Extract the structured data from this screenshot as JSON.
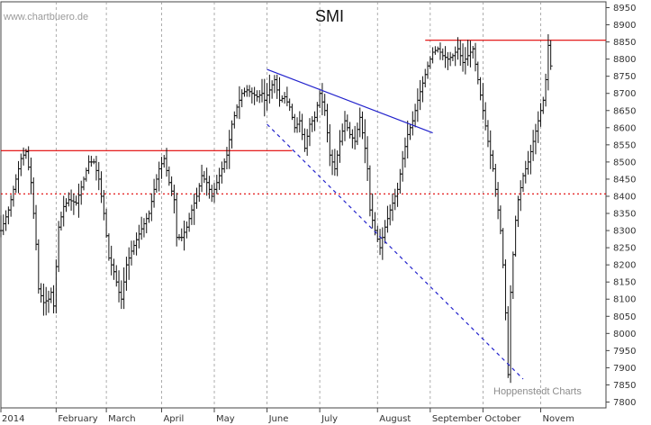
{
  "chart_data": {
    "type": "bar",
    "subtype": "ohlc",
    "title": "SMI",
    "source": "www.chartbuero.de",
    "credit": "Hoppenstedt Charts",
    "ylim": [
      7800,
      8950
    ],
    "y_ticks": [
      7800,
      7850,
      7900,
      7950,
      8000,
      8050,
      8100,
      8150,
      8200,
      8250,
      8300,
      8350,
      8400,
      8450,
      8500,
      8550,
      8600,
      8650,
      8700,
      8750,
      8800,
      8850,
      8900,
      8950
    ],
    "grid": {
      "vertical_month_lines": true,
      "style": "dashed-gray"
    },
    "months": [
      {
        "label": "2014",
        "day": 0
      },
      {
        "label": "February",
        "day": 22
      },
      {
        "label": "March",
        "day": 42
      },
      {
        "label": "April",
        "day": 64
      },
      {
        "label": "May",
        "day": 85
      },
      {
        "label": "June",
        "day": 106
      },
      {
        "label": "July",
        "day": 127
      },
      {
        "label": "August",
        "day": 150
      },
      {
        "label": "September",
        "day": 171
      },
      {
        "label": "October",
        "day": 192
      },
      {
        "label": "Novem",
        "day": 215
      }
    ],
    "x_range": [
      0,
      241
    ],
    "anchors": [
      [
        0,
        8300
      ],
      [
        3,
        8360
      ],
      [
        6,
        8450
      ],
      [
        8,
        8510
      ],
      [
        10,
        8530
      ],
      [
        12,
        8440
      ],
      [
        14,
        8260
      ],
      [
        15,
        8130
      ],
      [
        17,
        8090
      ],
      [
        19,
        8100
      ],
      [
        20,
        8120
      ],
      [
        21,
        8080
      ],
      [
        23,
        8310
      ],
      [
        25,
        8370
      ],
      [
        27,
        8390
      ],
      [
        30,
        8380
      ],
      [
        33,
        8450
      ],
      [
        35,
        8500
      ],
      [
        37,
        8500
      ],
      [
        39,
        8450
      ],
      [
        41,
        8350
      ],
      [
        43,
        8220
      ],
      [
        45,
        8180
      ],
      [
        47,
        8120
      ],
      [
        48,
        8100
      ],
      [
        50,
        8200
      ],
      [
        52,
        8240
      ],
      [
        55,
        8290
      ],
      [
        57,
        8320
      ],
      [
        59,
        8350
      ],
      [
        61,
        8420
      ],
      [
        63,
        8480
      ],
      [
        65,
        8510
      ],
      [
        67,
        8440
      ],
      [
        69,
        8390
      ],
      [
        70,
        8280
      ],
      [
        72,
        8280
      ],
      [
        74,
        8310
      ],
      [
        76,
        8360
      ],
      [
        78,
        8400
      ],
      [
        80,
        8460
      ],
      [
        82,
        8440
      ],
      [
        84,
        8400
      ],
      [
        86,
        8440
      ],
      [
        88,
        8480
      ],
      [
        90,
        8520
      ],
      [
        92,
        8610
      ],
      [
        94,
        8660
      ],
      [
        96,
        8700
      ],
      [
        98,
        8710
      ],
      [
        100,
        8700
      ],
      [
        102,
        8690
      ],
      [
        104,
        8700
      ],
      [
        105,
        8680
      ],
      [
        107,
        8710
      ],
      [
        109,
        8740
      ],
      [
        111,
        8680
      ],
      [
        113,
        8690
      ],
      [
        115,
        8660
      ],
      [
        117,
        8600
      ],
      [
        119,
        8620
      ],
      [
        121,
        8540
      ],
      [
        123,
        8610
      ],
      [
        125,
        8630
      ],
      [
        127,
        8700
      ],
      [
        129,
        8650
      ],
      [
        131,
        8520
      ],
      [
        133,
        8480
      ],
      [
        135,
        8560
      ],
      [
        137,
        8620
      ],
      [
        139,
        8580
      ],
      [
        141,
        8560
      ],
      [
        143,
        8630
      ],
      [
        145,
        8540
      ],
      [
        146,
        8480
      ],
      [
        147,
        8360
      ],
      [
        149,
        8300
      ],
      [
        151,
        8250
      ],
      [
        153,
        8310
      ],
      [
        155,
        8360
      ],
      [
        156,
        8380
      ],
      [
        158,
        8420
      ],
      [
        160,
        8510
      ],
      [
        162,
        8580
      ],
      [
        164,
        8620
      ],
      [
        166,
        8680
      ],
      [
        168,
        8730
      ],
      [
        170,
        8780
      ],
      [
        172,
        8820
      ],
      [
        174,
        8830
      ],
      [
        176,
        8810
      ],
      [
        178,
        8800
      ],
      [
        180,
        8810
      ],
      [
        182,
        8830
      ],
      [
        184,
        8790
      ],
      [
        186,
        8810
      ],
      [
        188,
        8830
      ],
      [
        190,
        8740
      ],
      [
        192,
        8650
      ],
      [
        194,
        8560
      ],
      [
        196,
        8480
      ],
      [
        198,
        8360
      ],
      [
        199,
        8300
      ],
      [
        200,
        8200
      ],
      [
        201,
        8060
      ],
      [
        202,
        7880
      ],
      [
        203,
        8120
      ],
      [
        204,
        8230
      ],
      [
        205,
        8330
      ],
      [
        206,
        8390
      ],
      [
        208,
        8460
      ],
      [
        210,
        8500
      ],
      [
        212,
        8560
      ],
      [
        214,
        8620
      ],
      [
        216,
        8680
      ],
      [
        217,
        8740
      ],
      [
        218,
        8840
      ],
      [
        219,
        8780
      ]
    ],
    "lines": [
      {
        "kind": "resistance",
        "style": "solid",
        "color": "#e00000",
        "x": [
          0,
          116
        ],
        "y": [
          8533,
          8533
        ]
      },
      {
        "kind": "resistance",
        "style": "solid",
        "color": "#e00000",
        "x": [
          169,
          241
        ],
        "y": [
          8855,
          8855
        ]
      },
      {
        "kind": "support",
        "style": "dotted",
        "color": "#e00000",
        "x": [
          0,
          241
        ],
        "y": [
          8407,
          8407
        ]
      },
      {
        "kind": "trend-upper",
        "style": "solid",
        "color": "#2222cc",
        "x": [
          106,
          172
        ],
        "y": [
          8770,
          8585
        ]
      },
      {
        "kind": "trend-lower",
        "style": "dashed",
        "color": "#2222cc",
        "x": [
          106,
          208
        ],
        "y": [
          8610,
          7867
        ]
      }
    ],
    "colors": {
      "bars": "#111111",
      "grid": "#999999",
      "axis": "#444444"
    }
  }
}
